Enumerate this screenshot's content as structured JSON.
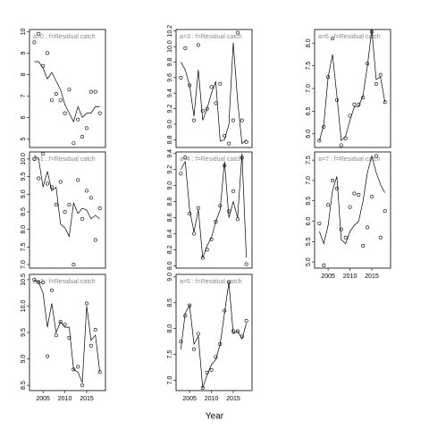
{
  "xlabel": "Year",
  "chart_data": [
    {
      "type": "point-line",
      "title": "a=0 : f=Residual catch",
      "x": [
        2003,
        2004,
        2005,
        2006,
        2007,
        2008,
        2009,
        2010,
        2011,
        2012,
        2013,
        2014,
        2015,
        2016,
        2017,
        2018
      ],
      "series": [
        {
          "style": "points",
          "values": [
            9.5,
            9.9,
            8.4,
            9.0,
            6.8,
            7.1,
            6.8,
            6.2,
            7.3,
            4.8,
            5.9,
            5.1,
            5.5,
            7.2,
            7.2,
            6.2
          ]
        },
        {
          "style": "line",
          "values": [
            8.6,
            8.6,
            8.3,
            7.8,
            8.1,
            7.7,
            7.3,
            6.6,
            6.2,
            5.8,
            6.5,
            6.0,
            6.2,
            6.2,
            6.5,
            6.5
          ]
        }
      ],
      "xlim": [
        2001.9,
        2019.3
      ],
      "ylim": [
        4.6,
        10.1
      ],
      "yticks": [
        5,
        6,
        7,
        8,
        9,
        10
      ]
    },
    {
      "type": "point-line",
      "title": "a=1 : f=Residual catch",
      "x": [
        2003,
        2004,
        2005,
        2006,
        2007,
        2008,
        2009,
        2010,
        2011,
        2012,
        2013,
        2014,
        2015,
        2016,
        2017,
        2018
      ],
      "series": [
        {
          "style": "points",
          "values": [
            10.0,
            9.45,
            10.15,
            9.3,
            9.2,
            8.7,
            9.35,
            8.5,
            8.7,
            7.0,
            9.4,
            8.3,
            9.1,
            8.9,
            7.7,
            8.6
          ]
        },
        {
          "style": "line",
          "values": [
            10.1,
            10.0,
            9.2,
            9.65,
            9.1,
            9.2,
            8.15,
            8.05,
            7.8,
            8.75,
            8.45,
            8.6,
            8.55,
            8.3,
            8.4,
            8.3
          ]
        }
      ],
      "xlim": [
        2001.9,
        2019.3
      ],
      "ylim": [
        6.9,
        10.2
      ],
      "yticks": [
        {
          "value": 7,
          "label": "7.0"
        },
        7.5,
        {
          "value": 8,
          "label": "8.0"
        },
        8.5,
        {
          "value": 9,
          "label": "9.0"
        },
        9.5,
        {
          "value": 10,
          "label": "10.0"
        }
      ]
    },
    {
      "type": "point-line",
      "title": "a=2 : f=Residual catch",
      "x": [
        2003,
        2004,
        2005,
        2006,
        2007,
        2008,
        2009,
        2010,
        2011,
        2012,
        2013,
        2014,
        2015,
        2016,
        2017,
        2018
      ],
      "series": [
        {
          "style": "points",
          "values": [
            10.5,
            10.45,
            10.45,
            9.05,
            10.3,
            9.45,
            9.7,
            9.65,
            9.4,
            8.8,
            8.85,
            8.5,
            10.05,
            9.25,
            9.55,
            8.75
          ]
        },
        {
          "style": "line",
          "values": [
            10.5,
            10.45,
            10.25,
            9.6,
            10.05,
            9.5,
            9.7,
            9.6,
            9.6,
            8.8,
            8.75,
            8.55,
            10.0,
            9.35,
            9.45,
            8.75
          ]
        }
      ],
      "xlim": [
        2001.9,
        2019.3
      ],
      "xticks": [
        2005,
        2010,
        2015
      ],
      "ylim": [
        8.4,
        10.6
      ],
      "yticks": [
        8.5,
        {
          "value": 9,
          "label": "9.0"
        },
        9.5,
        {
          "value": 10,
          "label": "10.0"
        },
        10.5
      ]
    },
    {
      "type": "point-line",
      "title": "a=3 : f=Residual catch",
      "x": [
        2003,
        2004,
        2005,
        2006,
        2007,
        2008,
        2009,
        2010,
        2011,
        2012,
        2013,
        2014,
        2015,
        2016,
        2017,
        2018
      ],
      "series": [
        {
          "style": "points",
          "values": [
            9.6,
            9.98,
            9.5,
            9.05,
            10.02,
            9.17,
            9.2,
            9.48,
            9.27,
            9.52,
            8.85,
            8.75,
            9.05,
            10.18,
            9.05,
            8.77
          ]
        },
        {
          "style": "line",
          "values": [
            9.8,
            9.7,
            9.5,
            9.1,
            9.7,
            9.05,
            9.2,
            9.4,
            9.55,
            8.78,
            8.8,
            9.0,
            10.05,
            9.3,
            8.75,
            8.8
          ]
        }
      ],
      "xlim": [
        2001.9,
        2019.3
      ],
      "ylim": [
        8.7,
        10.22
      ],
      "yticks": [
        8.8,
        {
          "value": 9,
          "label": "9.0"
        },
        9.2,
        9.4,
        9.6,
        9.8,
        {
          "value": 10,
          "label": "10.0"
        },
        10.2
      ]
    },
    {
      "type": "point-line",
      "title": "a=4 : f=Residual catch",
      "x": [
        2003,
        2004,
        2005,
        2006,
        2007,
        2008,
        2009,
        2010,
        2011,
        2012,
        2013,
        2014,
        2015,
        2016,
        2017,
        2018
      ],
      "series": [
        {
          "style": "points",
          "values": [
            9.15,
            9.35,
            8.65,
            8.4,
            8.72,
            8.1,
            8.2,
            8.33,
            8.55,
            8.75,
            9.25,
            8.68,
            8.93,
            8.58,
            9.35,
            8.02
          ]
        },
        {
          "style": "line",
          "values": [
            9.2,
            9.3,
            8.7,
            8.42,
            8.7,
            8.1,
            8.25,
            8.35,
            8.55,
            8.7,
            9.3,
            8.6,
            8.8,
            8.6,
            9.4,
            8.1
          ]
        }
      ],
      "xlim": [
        2001.9,
        2019.3
      ],
      "ylim": [
        7.97,
        9.42
      ],
      "yticks": [
        {
          "value": 8,
          "label": "8.0"
        },
        8.2,
        8.4,
        8.6,
        8.8,
        {
          "value": 9,
          "label": "9.0"
        },
        9.2,
        9.4
      ]
    },
    {
      "type": "point-line",
      "title": "a=5 : f=Residual catch",
      "x": [
        2003,
        2004,
        2005,
        2006,
        2007,
        2008,
        2009,
        2010,
        2011,
        2012,
        2013,
        2014,
        2015,
        2016,
        2017,
        2018
      ],
      "series": [
        {
          "style": "points",
          "values": [
            7.75,
            8.25,
            8.45,
            7.6,
            7.9,
            6.85,
            7.15,
            7.2,
            7.45,
            7.7,
            8.35,
            8.9,
            7.95,
            7.95,
            7.85,
            8.15
          ]
        },
        {
          "style": "line",
          "values": [
            7.6,
            8.3,
            8.45,
            7.7,
            7.85,
            6.85,
            7.1,
            7.3,
            7.4,
            7.7,
            8.3,
            8.9,
            7.9,
            7.95,
            7.8,
            8.1
          ]
        }
      ],
      "xlim": [
        2001.9,
        2019.3
      ],
      "xticks": [
        2005,
        2010,
        2015
      ],
      "ylim": [
        6.8,
        9.05
      ],
      "yticks": [
        {
          "value": 7,
          "label": "7.0"
        },
        7.5,
        {
          "value": 8,
          "label": "8.0"
        },
        8.5,
        {
          "value": 9,
          "label": "9.0"
        }
      ]
    },
    {
      "type": "point-line",
      "title": "a=6 : f=Residual catch",
      "x": [
        2003,
        2004,
        2005,
        2006,
        2007,
        2008,
        2009,
        2010,
        2011,
        2012,
        2013,
        2014,
        2015,
        2016,
        2017,
        2018
      ],
      "series": [
        {
          "style": "points",
          "values": [
            5.85,
            6.15,
            7.25,
            8.1,
            6.75,
            5.75,
            5.9,
            6.4,
            6.65,
            6.65,
            6.8,
            7.55,
            8.25,
            7.1,
            7.3,
            6.7
          ]
        },
        {
          "style": "line",
          "values": [
            5.85,
            6.2,
            7.25,
            7.75,
            6.85,
            5.85,
            5.95,
            6.3,
            6.6,
            6.6,
            6.85,
            7.5,
            8.3,
            7.2,
            7.25,
            6.7
          ]
        }
      ],
      "xlim": [
        2001.9,
        2019.3
      ],
      "ylim": [
        5.7,
        8.3
      ],
      "yticks": [
        {
          "value": 6,
          "label": "6.0"
        },
        6.5,
        {
          "value": 7,
          "label": "7.0"
        },
        7.5,
        {
          "value": 8,
          "label": "8.0"
        }
      ]
    },
    {
      "type": "point-line",
      "title": "a=7 : f=Residual catch",
      "x": [
        2003,
        2004,
        2005,
        2006,
        2007,
        2008,
        2009,
        2010,
        2011,
        2012,
        2013,
        2014,
        2015,
        2016,
        2017,
        2018
      ],
      "series": [
        {
          "style": "points",
          "values": [
            5.95,
            4.92,
            6.4,
            7.0,
            6.8,
            5.8,
            5.6,
            6.35,
            6.68,
            6.65,
            5.4,
            5.85,
            6.6,
            7.6,
            5.6,
            6.25
          ]
        },
        {
          "style": "line",
          "values": [
            5.75,
            5.45,
            5.9,
            6.75,
            7.1,
            5.55,
            5.45,
            5.75,
            5.9,
            6.0,
            6.5,
            7.2,
            7.6,
            7.2,
            6.9,
            6.7
          ]
        }
      ],
      "xlim": [
        2001.9,
        2019.3
      ],
      "xticks": [
        2005,
        2010,
        2015
      ],
      "ylim": [
        4.85,
        7.7
      ],
      "yticks": [
        {
          "value": 5,
          "label": "5.0"
        },
        5.5,
        {
          "value": 6,
          "label": "6.0"
        },
        6.5,
        {
          "value": 7,
          "label": "7.0"
        },
        7.5
      ]
    }
  ]
}
